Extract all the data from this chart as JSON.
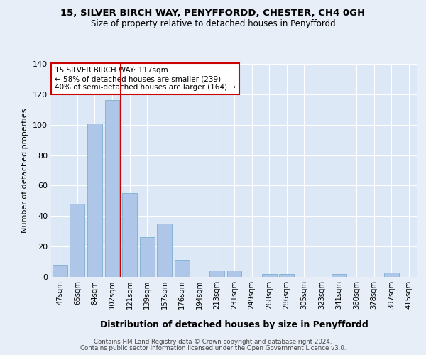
{
  "title1": "15, SILVER BIRCH WAY, PENYFFORDD, CHESTER, CH4 0GH",
  "title2": "Size of property relative to detached houses in Penyffordd",
  "xlabel": "Distribution of detached houses by size in Penyffordd",
  "ylabel": "Number of detached properties",
  "categories": [
    "47sqm",
    "65sqm",
    "84sqm",
    "102sqm",
    "121sqm",
    "139sqm",
    "157sqm",
    "176sqm",
    "194sqm",
    "213sqm",
    "231sqm",
    "249sqm",
    "268sqm",
    "286sqm",
    "305sqm",
    "323sqm",
    "341sqm",
    "360sqm",
    "378sqm",
    "397sqm",
    "415sqm"
  ],
  "values": [
    8,
    48,
    101,
    116,
    55,
    26,
    35,
    11,
    0,
    4,
    4,
    0,
    2,
    2,
    0,
    0,
    2,
    0,
    0,
    3,
    0
  ],
  "bar_color": "#aec6e8",
  "bar_edge_color": "#7aafd4",
  "vline_x": 3.5,
  "vline_color": "#cc0000",
  "annotation_lines": [
    "15 SILVER BIRCH WAY: 117sqm",
    "← 58% of detached houses are smaller (239)",
    "40% of semi-detached houses are larger (164) →"
  ],
  "annotation_box_color": "#cc0000",
  "ylim": [
    0,
    140
  ],
  "yticks": [
    0,
    20,
    40,
    60,
    80,
    100,
    120,
    140
  ],
  "bg_color": "#dce8f5",
  "fig_bg_color": "#e8eef8",
  "grid_color": "#ffffff",
  "footer1": "Contains HM Land Registry data © Crown copyright and database right 2024.",
  "footer2": "Contains public sector information licensed under the Open Government Licence v3.0."
}
